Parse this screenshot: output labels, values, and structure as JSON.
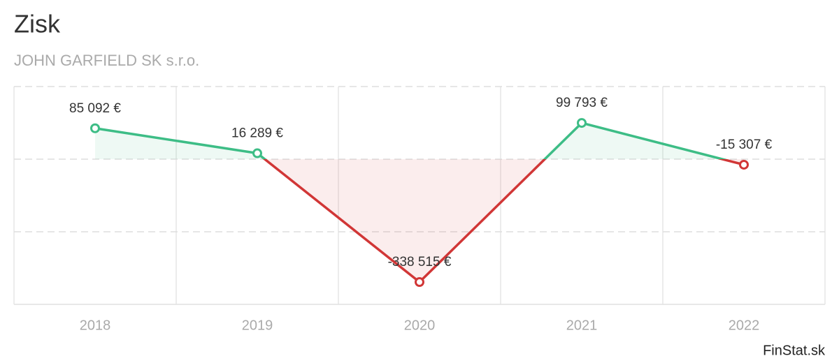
{
  "chart_data": {
    "type": "line",
    "title": "Zisk",
    "subtitle": "JOHN GARFIELD SK s.r.o.",
    "source": "FinStat.sk",
    "categories": [
      "2018",
      "2019",
      "2020",
      "2021",
      "2022"
    ],
    "values": [
      85092,
      16289,
      -338515,
      99793,
      -15307
    ],
    "value_labels": [
      "85 092 €",
      "16 289 €",
      "-338 515 €",
      "99 793 €",
      "-15 307 €"
    ],
    "positive_color": "#3dbd86",
    "negative_color": "#d13636",
    "ylim": [
      -400000,
      200000
    ],
    "yticks": [
      -400000,
      -200000,
      0,
      200000
    ],
    "grid": true
  }
}
